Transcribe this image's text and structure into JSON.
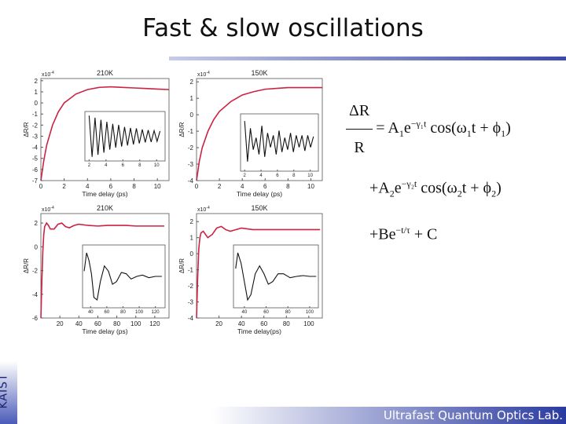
{
  "header": {
    "title": "Fast & slow oscillations"
  },
  "side_label": "KAIST",
  "footer": "Ultrafast Quantum Optics Lab.",
  "equation": {
    "numerator": "ΔR",
    "denominator": "R",
    "lines": [
      [
        {
          "text": "= A"
        },
        {
          "text": "1",
          "pos": "sub"
        },
        {
          "text": "e"
        },
        {
          "text": "−γ₁t",
          "pos": "sup"
        },
        {
          "text": " cos(ω"
        },
        {
          "text": "1",
          "pos": "sub"
        },
        {
          "text": "t + ϕ"
        },
        {
          "text": "1",
          "pos": "sub"
        },
        {
          "text": ")"
        }
      ],
      [
        {
          "text": "+A"
        },
        {
          "text": "2",
          "pos": "sub"
        },
        {
          "text": "e"
        },
        {
          "text": "−γ₂t",
          "pos": "sup"
        },
        {
          "text": " cos(ω"
        },
        {
          "text": "2",
          "pos": "sub"
        },
        {
          "text": "t + ϕ"
        },
        {
          "text": "2",
          "pos": "sub"
        },
        {
          "text": ")"
        }
      ],
      [
        {
          "text": "+Be"
        },
        {
          "text": "−t/τ",
          "pos": "sup"
        },
        {
          "text": " + C"
        }
      ]
    ]
  },
  "chart_data": [
    {
      "type": "line",
      "title": "210K",
      "xlabel": "Time delay (ps)",
      "ylabel": "ΔR/R",
      "exponent": {
        "base": "x10",
        "power": "-4"
      },
      "xlim": [
        0,
        11
      ],
      "ylim": [
        -7,
        2.2
      ],
      "xticks": [
        0,
        2,
        4,
        6,
        8,
        10
      ],
      "yticks": [
        2,
        1,
        0,
        -1,
        -2,
        -3,
        -4,
        -5,
        -6,
        -7
      ],
      "color": "#cc2244",
      "x": [
        0,
        0.25,
        0.5,
        1,
        1.5,
        2,
        3,
        4,
        5,
        6,
        7,
        8,
        9,
        10,
        11
      ],
      "values": [
        -7,
        -5.2,
        -3.8,
        -2,
        -0.8,
        0,
        0.8,
        1.2,
        1.4,
        1.45,
        1.4,
        1.35,
        1.3,
        1.25,
        1.2
      ],
      "inset": {
        "type": "line",
        "xlim": [
          1.5,
          11
        ],
        "ylim": [
          -1.2,
          1.2
        ],
        "xticks": [
          2,
          4,
          6,
          8,
          10
        ],
        "color": "#111111",
        "x": [
          2.0,
          2.35,
          2.7,
          3.05,
          3.4,
          3.75,
          4.1,
          4.45,
          4.8,
          5.15,
          5.5,
          5.85,
          6.2,
          6.55,
          6.9,
          7.25,
          7.6,
          7.95,
          8.3,
          8.65,
          9.0,
          9.35,
          9.7,
          10.05,
          10.4
        ],
        "values": [
          1,
          -1,
          0.9,
          -0.9,
          0.8,
          -0.8,
          0.7,
          -0.65,
          0.6,
          -0.55,
          0.55,
          -0.5,
          0.45,
          -0.45,
          0.4,
          -0.4,
          0.38,
          -0.35,
          0.33,
          -0.3,
          0.3,
          -0.28,
          0.27,
          -0.25,
          0.25
        ]
      }
    },
    {
      "type": "line",
      "title": "150K",
      "xlabel": "Time delay (ps)",
      "ylabel": "ΔR/R",
      "exponent": {
        "base": "x10",
        "power": "-4"
      },
      "xlim": [
        0,
        11
      ],
      "ylim": [
        -4,
        2.2
      ],
      "xticks": [
        0,
        2,
        4,
        6,
        8,
        10
      ],
      "yticks": [
        2,
        1,
        0,
        -1,
        -2,
        -3,
        -4
      ],
      "color": "#cc2244",
      "x": [
        0,
        0.25,
        0.5,
        1,
        1.5,
        2,
        3,
        4,
        5,
        6,
        7,
        8,
        9,
        10,
        11
      ],
      "values": [
        -4,
        -2.8,
        -2,
        -1,
        -0.3,
        0.2,
        0.8,
        1.2,
        1.4,
        1.55,
        1.6,
        1.65,
        1.65,
        1.65,
        1.65
      ],
      "inset": {
        "type": "line",
        "xlim": [
          1.5,
          11
        ],
        "ylim": [
          -1.2,
          1.2
        ],
        "xticks": [
          2,
          4,
          6,
          8,
          10
        ],
        "color": "#111111",
        "x": [
          2.0,
          2.35,
          2.7,
          3.05,
          3.4,
          3.75,
          4.1,
          4.45,
          4.8,
          5.15,
          5.5,
          5.85,
          6.2,
          6.55,
          6.9,
          7.25,
          7.6,
          7.95,
          8.3,
          8.65,
          9.0,
          9.35,
          9.7,
          10.05,
          10.4
        ],
        "values": [
          0.9,
          -0.8,
          0.6,
          -0.3,
          0.2,
          -0.5,
          0.7,
          -0.6,
          0.4,
          -0.2,
          0.3,
          -0.5,
          0.5,
          -0.4,
          0.2,
          -0.3,
          0.4,
          -0.4,
          0.3,
          -0.2,
          0.3,
          -0.35,
          0.3,
          -0.2,
          0.25
        ]
      }
    },
    {
      "type": "line",
      "title": "210K",
      "xlabel": "Time delay (ps)",
      "ylabel": "ΔR/R",
      "exponent": {
        "base": "x10",
        "power": "-4"
      },
      "xlim": [
        0,
        135
      ],
      "ylim": [
        -6,
        2.8
      ],
      "xticks": [
        20,
        40,
        60,
        80,
        100,
        120
      ],
      "yticks": [
        2,
        0,
        -2,
        -4,
        -6
      ],
      "color": "#cc2244",
      "x": [
        0,
        1,
        2,
        3,
        4,
        6,
        8,
        10,
        14,
        18,
        22,
        26,
        30,
        35,
        40,
        50,
        60,
        70,
        80,
        90,
        100,
        110,
        120,
        130
      ],
      "values": [
        -6,
        -3,
        -0.5,
        1,
        1.7,
        2.0,
        1.8,
        1.5,
        1.5,
        1.9,
        2.0,
        1.7,
        1.6,
        1.8,
        1.9,
        1.8,
        1.75,
        1.8,
        1.8,
        1.8,
        1.75,
        1.75,
        1.75,
        1.75
      ],
      "inset": {
        "type": "line",
        "xlim": [
          30,
          132
        ],
        "ylim": [
          -1.2,
          1.2
        ],
        "xticks": [
          40,
          60,
          80,
          100,
          120
        ],
        "color": "#111111",
        "x": [
          32,
          35,
          38,
          41,
          44,
          48,
          52,
          57,
          62,
          67,
          72,
          78,
          84,
          90,
          97,
          104,
          112,
          120,
          128
        ],
        "values": [
          0.2,
          0.9,
          0.6,
          0.1,
          -0.8,
          -0.9,
          -0.2,
          0.4,
          0.2,
          -0.3,
          -0.2,
          0.15,
          0.1,
          -0.1,
          0,
          0.05,
          -0.05,
          0,
          0
        ]
      }
    },
    {
      "type": "line",
      "title": "150K",
      "xlabel": "Time delay(ps)",
      "ylabel": "ΔR/R",
      "exponent": {
        "base": "x10",
        "power": "-4"
      },
      "xlim": [
        0,
        112
      ],
      "ylim": [
        -4,
        2.5
      ],
      "xticks": [
        20,
        40,
        60,
        80,
        100
      ],
      "yticks": [
        2,
        1,
        0,
        -1,
        -2,
        -3,
        -4
      ],
      "color": "#cc2244",
      "x": [
        0,
        1,
        2,
        3,
        4,
        6,
        8,
        10,
        14,
        18,
        22,
        26,
        30,
        35,
        40,
        50,
        60,
        70,
        80,
        90,
        100,
        110
      ],
      "values": [
        -4,
        -1.5,
        0.3,
        1.0,
        1.3,
        1.4,
        1.2,
        1.0,
        1.2,
        1.6,
        1.7,
        1.5,
        1.4,
        1.5,
        1.6,
        1.5,
        1.5,
        1.5,
        1.5,
        1.5,
        1.5,
        1.5
      ],
      "inset": {
        "type": "line",
        "xlim": [
          30,
          108
        ],
        "ylim": [
          -1.2,
          1.2
        ],
        "xticks": [
          40,
          60,
          80,
          100
        ],
        "color": "#111111",
        "x": [
          32,
          34,
          37,
          40,
          43,
          46,
          50,
          54,
          58,
          62,
          66,
          71,
          76,
          82,
          88,
          94,
          100,
          106
        ],
        "values": [
          0.3,
          0.9,
          0.5,
          -0.2,
          -0.9,
          -0.7,
          0.1,
          0.4,
          0.1,
          -0.3,
          -0.2,
          0.1,
          0.1,
          -0.05,
          0,
          0.03,
          0,
          0
        ]
      }
    }
  ]
}
